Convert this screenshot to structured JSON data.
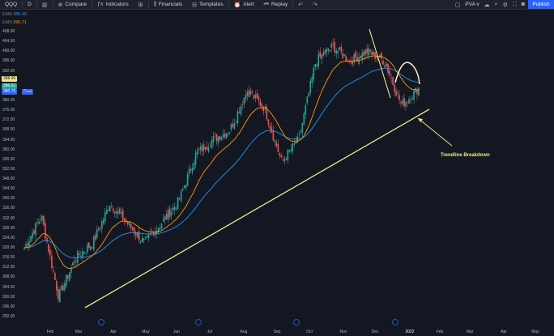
{
  "toolbar": {
    "symbol": "QQQ",
    "interval": "D",
    "compare": "Compare",
    "indicators": "Indicators",
    "financials": "Financials",
    "templates": "Templates",
    "alert": "Alert",
    "replay": "Replay",
    "layout": "PVA v",
    "publish": "Publish"
  },
  "legend": {
    "ema1_label": "EMA",
    "ema1_value": "389.40",
    "ema2_label": "EMA",
    "ema2_value": "390.71"
  },
  "price_tags": [
    {
      "text": "388.90",
      "bg": "#f0e68c",
      "fg": "#131722"
    },
    {
      "text": "386.51",
      "bg": "#26a69a",
      "fg": "#ffffff"
    },
    {
      "text": "380.75",
      "bg": "#2962ff",
      "fg": "#ffffff"
    },
    {
      "text": "Post",
      "bg": "#2962ff",
      "fg": "#ffffff"
    }
  ],
  "annotation": "Trendline Breakdown",
  "colors": {
    "up": "#26a69a",
    "down": "#ef5350",
    "ema_fast": "#ff9800",
    "ema_slow": "#2196f3",
    "trendline": "#f0e68c",
    "annotation": "#f0e68c"
  },
  "chart_data": {
    "type": "candlestick",
    "x_ticks": [
      "Feb",
      "Mar",
      "Apr",
      "May",
      "Jun",
      "Jul",
      "Aug",
      "Sep",
      "Oct",
      "Nov",
      "Dec",
      "2022",
      "Feb",
      "Mar",
      "Apr",
      "May"
    ],
    "y_ticks": [
      292,
      296,
      300,
      304,
      308,
      312,
      316,
      320,
      324,
      328,
      332,
      336,
      340,
      344,
      348,
      352,
      356,
      360,
      364,
      368,
      372,
      376,
      380,
      384,
      388,
      392,
      396,
      400,
      404,
      408
    ],
    "ylim": [
      290,
      410
    ],
    "closes_approx": [
      [
        "Feb",
        320
      ],
      [
        "Feb",
        333
      ],
      [
        "Mar",
        300
      ],
      [
        "Mar",
        316
      ],
      [
        "Apr",
        322
      ],
      [
        "Apr",
        338
      ],
      [
        "May",
        330
      ],
      [
        "May",
        322
      ],
      [
        "Jun",
        330
      ],
      [
        "Jun",
        339
      ],
      [
        "Jul",
        358
      ],
      [
        "Jul",
        364
      ],
      [
        "Aug",
        368
      ],
      [
        "Sep",
        384
      ],
      [
        "Sep",
        377
      ],
      [
        "Oct",
        355
      ],
      [
        "Oct",
        364
      ],
      [
        "Nov",
        396
      ],
      [
        "Nov",
        402
      ],
      [
        "Dec",
        396
      ],
      [
        "Dec",
        400
      ],
      [
        "2022",
        396
      ],
      [
        "2022",
        378
      ],
      [
        "2022",
        385
      ]
    ],
    "trendline": {
      "from": [
        "Mar",
        298
      ],
      "to": [
        "2022",
        375
      ]
    },
    "indicators": [
      "EMA (fast)",
      "EMA (slow)"
    ]
  }
}
